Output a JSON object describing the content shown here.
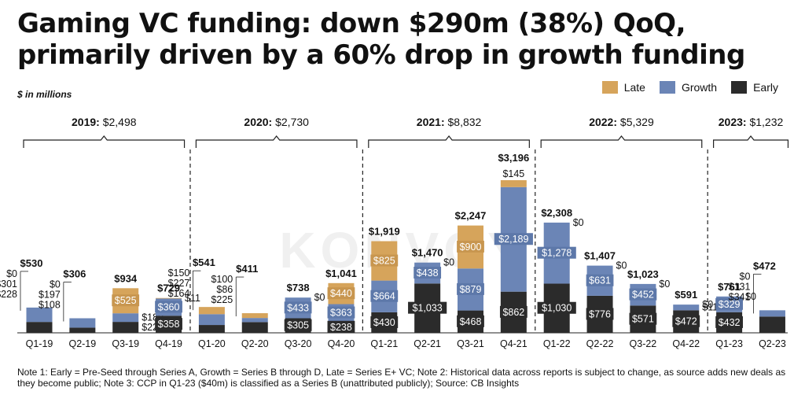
{
  "title": "Gaming VC funding: down $290m (38%) QoQ, primarily driven by a 60% drop in growth funding",
  "units_note": "$ in millions",
  "legend": [
    {
      "key": "late",
      "label": "Late",
      "color": "#d6a45b"
    },
    {
      "key": "growth",
      "label": "Growth",
      "color": "#6b85b6"
    },
    {
      "key": "early",
      "label": "Early",
      "color": "#2b2b2b"
    }
  ],
  "years": [
    {
      "year": "2019:",
      "total": "$2,498"
    },
    {
      "year": "2020:",
      "total": "$2,730"
    },
    {
      "year": "2021:",
      "total": "$8,832"
    },
    {
      "year": "2022:",
      "total": "$5,329"
    },
    {
      "year": "2023:",
      "total": "$1,232"
    }
  ],
  "watermark": "KONVOY",
  "footnote": "Note 1: Early = Pre-Seed through Series A, Growth = Series B through D, Late = Series E+ VC; Note 2: Historical data across reports is subject to change, as source adds new deals as they become public; Note 3: CCP in Q1-23 ($40m) is classified as a Series B (unattributed publicly); Source: CB Insights",
  "chart_data": {
    "type": "bar",
    "stacked": true,
    "categories": [
      "Q1-19",
      "Q2-19",
      "Q3-19",
      "Q4-19",
      "Q1-20",
      "Q2-20",
      "Q3-20",
      "Q4-20",
      "Q1-21",
      "Q2-21",
      "Q3-21",
      "Q4-21",
      "Q1-22",
      "Q2-22",
      "Q3-22",
      "Q4-22",
      "Q1-23",
      "Q2-23"
    ],
    "series": [
      {
        "name": "Early",
        "values": [
          228,
          108,
          229,
          358,
          164,
          225,
          305,
          238,
          430,
          1033,
          468,
          862,
          1030,
          776,
          571,
          472,
          432,
          341
        ],
        "labels": [
          "$228",
          "$108",
          "$229",
          "$358",
          "$164",
          "$225",
          "$305",
          "$238",
          "$430",
          "$1,033",
          "$468",
          "$862",
          "$1,030",
          "$776",
          "$571",
          "$472",
          "$432",
          "$341"
        ]
      },
      {
        "name": "Growth",
        "values": [
          301,
          197,
          180,
          360,
          227,
          86,
          433,
          363,
          664,
          438,
          879,
          2189,
          1278,
          631,
          452,
          119,
          329,
          131
        ],
        "labels": [
          "$301",
          "$197",
          "$180",
          "$360",
          "$227",
          "$86",
          "$433",
          "$363",
          "$664",
          "$438",
          "$879",
          "$2,189",
          "$1,278",
          "$631",
          "$452",
          "$119",
          "$329",
          "$131"
        ]
      },
      {
        "name": "Late",
        "values": [
          0,
          0,
          525,
          11,
          150,
          100,
          0,
          440,
          825,
          0,
          900,
          145,
          0,
          0,
          0,
          0,
          0,
          0
        ],
        "labels": [
          "$0",
          "$0",
          "$525",
          "$11",
          "$150",
          "$100",
          "$0",
          "$440",
          "$825",
          "$0",
          "$900",
          "$145",
          "$0",
          "$0",
          "$0",
          "$0",
          "$0",
          "$0"
        ]
      }
    ],
    "totals": [
      530,
      306,
      934,
      729,
      541,
      411,
      738,
      1041,
      1919,
      1470,
      2247,
      3196,
      2308,
      1407,
      1023,
      591,
      761,
      472
    ],
    "total_labels": [
      "$530",
      "$306",
      "$934",
      "$729",
      "$541",
      "$411",
      "$738",
      "$1,041",
      "$1,919",
      "$1,470",
      "$2,247",
      "$3,196",
      "$2,308",
      "$1,407",
      "$1,023",
      "$591",
      "$761",
      "$472"
    ],
    "ylim": [
      0,
      3300
    ],
    "grid": false,
    "legend_position": "top-right"
  }
}
